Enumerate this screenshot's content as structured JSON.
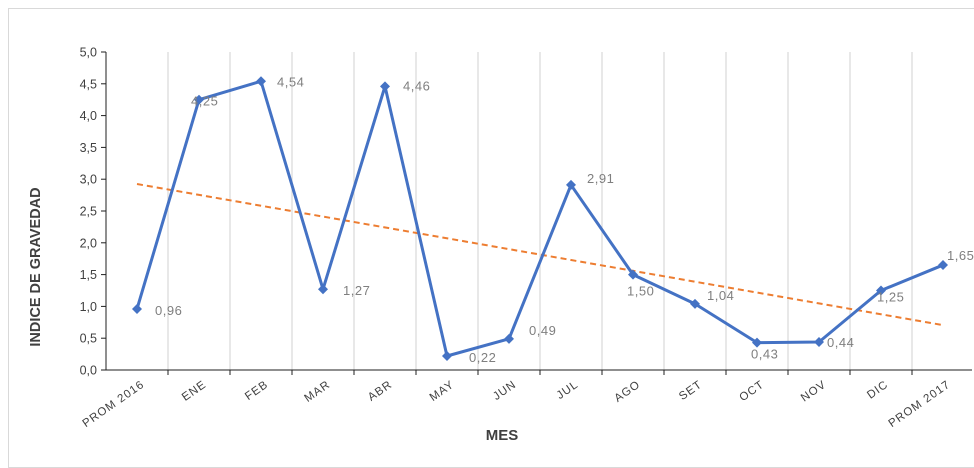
{
  "chart_data": {
    "type": "line",
    "xlabel": "MES",
    "ylabel": "INDICE DE GRAVEDAD",
    "ylim": [
      0,
      5
    ],
    "yticks": [
      "0,0",
      "0,5",
      "1,0",
      "1,5",
      "2,0",
      "2,5",
      "3,0",
      "3,5",
      "4,0",
      "4,5",
      "5,0"
    ],
    "categories": [
      "PROM 2016",
      "ENE",
      "FEB",
      "MAR",
      "ABR",
      "MAY",
      "JUN",
      "JUL",
      "AGO",
      "SET",
      "OCT",
      "NOV",
      "DIC",
      "PROM 2017"
    ],
    "series": [
      {
        "values": [
          0.96,
          4.25,
          4.54,
          1.27,
          4.46,
          0.22,
          0.49,
          2.91,
          1.5,
          1.04,
          0.43,
          0.44,
          1.25,
          1.65
        ],
        "labels": [
          "0,96",
          "4,25",
          "4,54",
          "1,27",
          "4,46",
          "0,22",
          "0,49",
          "2,91",
          "1,50",
          "1,04",
          "0,43",
          "0,44",
          "1,25",
          "1,65"
        ],
        "color": "#4472c4"
      }
    ],
    "trendline": {
      "type": "linear",
      "color": "#ed7d31",
      "style": "dashed"
    },
    "grid": "vertical",
    "legend": "none"
  }
}
